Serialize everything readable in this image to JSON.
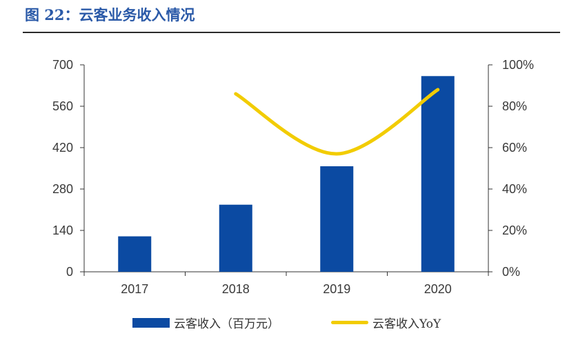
{
  "figure": {
    "title": "图 22：云客业务收入情况"
  },
  "colors": {
    "title": "#2b5aa8",
    "bar": "#0b4aa2",
    "line": "#f2cc00",
    "axis": "#333333"
  },
  "chart_data": {
    "type": "bar",
    "categories": [
      "2017",
      "2018",
      "2019",
      "2020"
    ],
    "series": [
      {
        "name": "云客收入（百万元）",
        "type": "bar",
        "axis": "left",
        "values": [
          120,
          227,
          357,
          662
        ]
      },
      {
        "name": "云客收入YoY",
        "type": "line",
        "axis": "right",
        "values": [
          null,
          0.86,
          0.57,
          0.88
        ]
      }
    ],
    "y_left": {
      "ticks": [
        "0",
        "140",
        "280",
        "420",
        "560",
        "700"
      ],
      "ylim": [
        0,
        700
      ]
    },
    "y_right": {
      "ticks": [
        "0%",
        "20%",
        "40%",
        "60%",
        "80%",
        "100%"
      ],
      "ylim": [
        0,
        1
      ]
    },
    "grid": false,
    "legend_position": "bottom"
  }
}
